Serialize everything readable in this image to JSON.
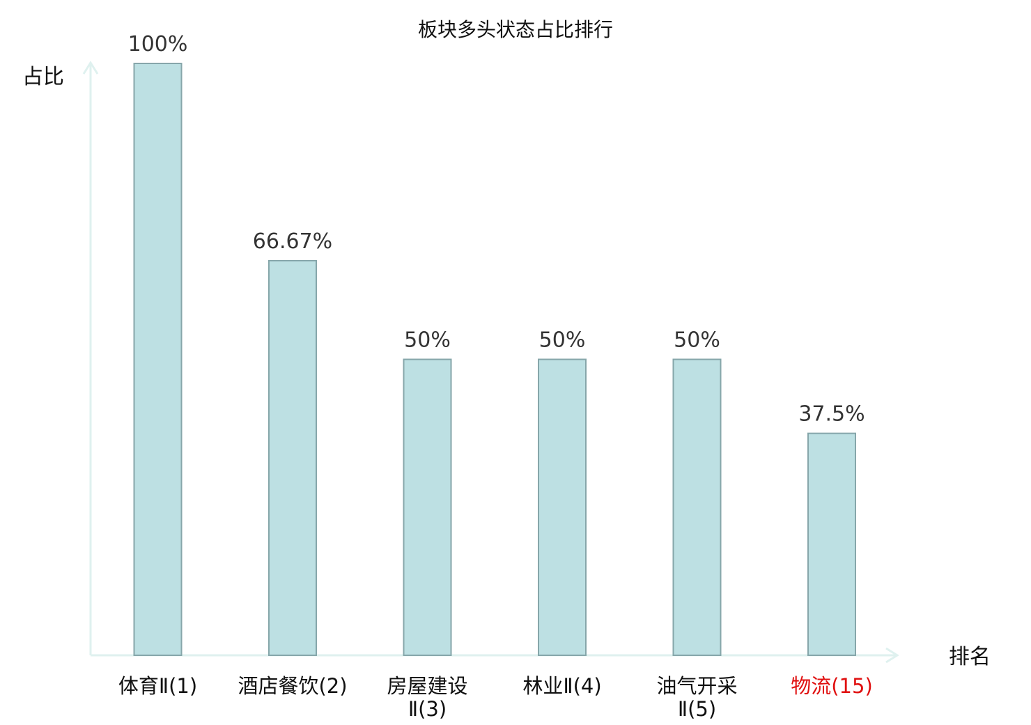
{
  "chart_data": {
    "type": "bar",
    "title": "板块多头状态占比排行",
    "ylabel": "占比",
    "xlabel": "排名",
    "ylim": [
      0,
      100
    ],
    "grid": false,
    "categories": [
      {
        "name_lines": [
          "体育Ⅱ(1)"
        ],
        "highlight": false
      },
      {
        "name_lines": [
          "酒店餐饮(2)"
        ],
        "highlight": false
      },
      {
        "name_lines": [
          "房屋建设",
          "Ⅱ(3)"
        ],
        "highlight": false
      },
      {
        "name_lines": [
          "林业Ⅱ(4)"
        ],
        "highlight": false
      },
      {
        "name_lines": [
          "油气开采",
          "Ⅱ(5)"
        ],
        "highlight": false
      },
      {
        "name_lines": [
          "物流(15)"
        ],
        "highlight": true
      }
    ],
    "values": [
      100,
      66.67,
      50,
      50,
      50,
      37.5
    ],
    "value_labels": [
      "100%",
      "66.67%",
      "50%",
      "50%",
      "50%",
      "37.5%"
    ],
    "colors": {
      "bar_fill": "#bde0e3",
      "bar_stroke": "#86a6aa",
      "axis": "#dff1ef",
      "highlight": "#e01010"
    }
  }
}
